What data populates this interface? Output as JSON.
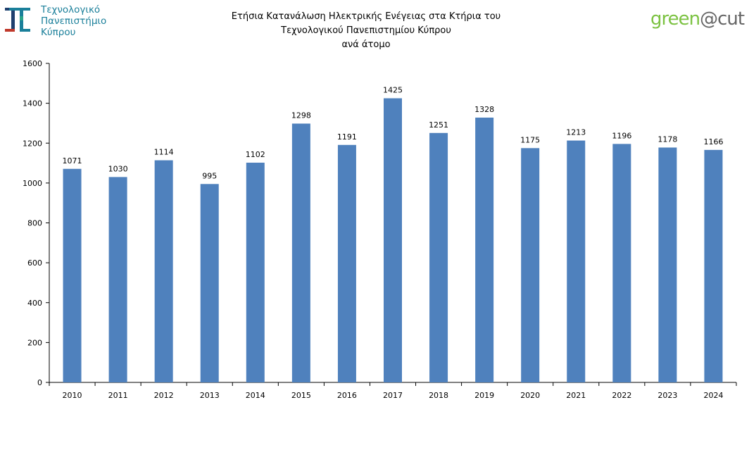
{
  "header": {
    "logo_left": {
      "lines": [
        "Τεχνολογικό",
        "Πανεπιστήμιο",
        "Κύπρου"
      ]
    },
    "logo_right": {
      "part1": "green",
      "part2": "@cut"
    }
  },
  "colors": {
    "bar": "#4f81bd",
    "logo_teal": "#1a7f9a",
    "logo_green": "#7cc242"
  },
  "chart_data": {
    "type": "bar",
    "title_lines": [
      "Ετήσια Κατανάλωση Ηλεκτρικής Ενέγειας στα Κτήρια του",
      "Τεχνολογικού  Πανεπιστημίου Κύπρου",
      "ανά άτομο"
    ],
    "categories": [
      "2010",
      "2011",
      "2012",
      "2013",
      "2014",
      "2015",
      "2016",
      "2017",
      "2018",
      "2019",
      "2020",
      "2021",
      "2022",
      "2023",
      "2024"
    ],
    "values": [
      1071,
      1030,
      1114,
      995,
      1102,
      1298,
      1191,
      1425,
      1251,
      1328,
      1175,
      1213,
      1196,
      1178,
      1166
    ],
    "data_labels": true,
    "xlabel": "",
    "ylabel": "",
    "ylim": [
      0,
      1600
    ],
    "yticks": [
      0,
      200,
      400,
      600,
      800,
      1000,
      1200,
      1400,
      1600
    ],
    "grid": false,
    "legend": "none"
  }
}
